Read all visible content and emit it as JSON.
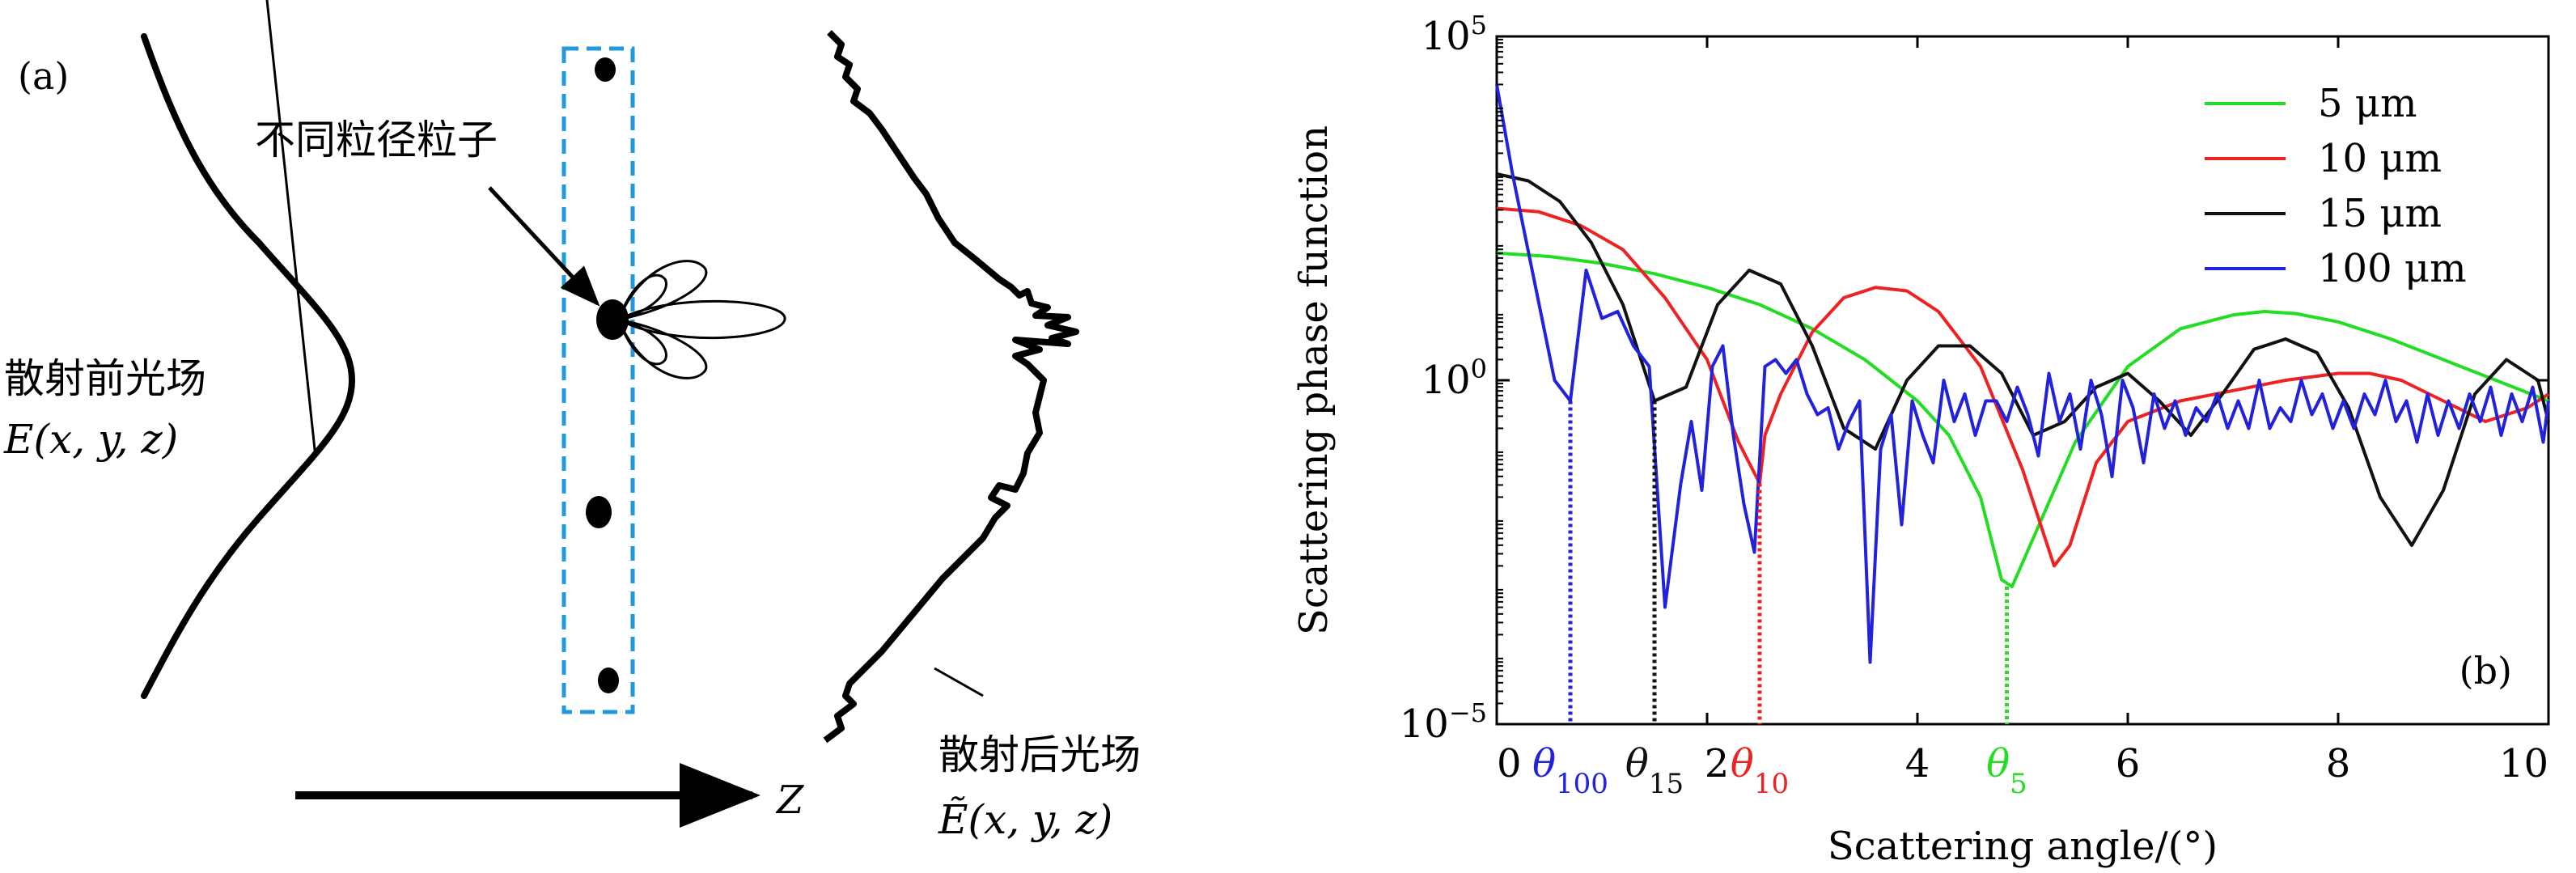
{
  "panel_a": {
    "label": "(a)",
    "particles_label": "不同粒径粒子",
    "before_label": "散射前光场",
    "before_field": "E(x, y, z)",
    "after_label": "散射后光场",
    "after_field": "Ẽ(x, y, z)",
    "axis_z": "Z"
  },
  "chart_data": {
    "type": "line",
    "panel_label": "(b)",
    "xlabel": "Scattering angle/(°)",
    "ylabel": "Scattering phase function",
    "xlim": [
      0,
      10
    ],
    "ylim_log10": [
      -5,
      5
    ],
    "y_scale": "log",
    "xticks": [
      0,
      2,
      4,
      6,
      8,
      10
    ],
    "yticks": [
      {
        "exp": 5,
        "base": "10",
        "sup": "5"
      },
      {
        "exp": 0,
        "base": "10",
        "sup": "0"
      },
      {
        "exp": -5,
        "base": "10",
        "sup": "−5"
      }
    ],
    "grid": false,
    "legend_position": "top-right",
    "series": [
      {
        "name": "5 μm",
        "color": "#22dd22",
        "x": [
          0,
          0.5,
          1,
          1.5,
          2,
          2.5,
          3,
          3.5,
          4,
          4.3,
          4.6,
          4.8,
          4.9,
          5.1,
          5.5,
          6,
          6.5,
          7,
          7.3,
          7.6,
          8,
          8.5,
          9,
          9.5,
          10
        ],
        "y_log10": [
          1.85,
          1.8,
          1.7,
          1.55,
          1.35,
          1.1,
          0.75,
          0.3,
          -0.3,
          -0.8,
          -1.7,
          -2.9,
          -3.0,
          -2.3,
          -0.9,
          0.2,
          0.75,
          0.95,
          1.0,
          0.97,
          0.85,
          0.6,
          0.3,
          0,
          -0.3
        ]
      },
      {
        "name": "10 μm",
        "color": "#ee2222",
        "x": [
          0,
          0.4,
          0.8,
          1.2,
          1.6,
          2,
          2.3,
          2.5,
          2.55,
          2.7,
          3,
          3.3,
          3.6,
          3.9,
          4.2,
          4.6,
          5,
          5.3,
          5.45,
          5.7,
          6,
          6.5,
          7,
          7.5,
          8,
          8.3,
          8.6,
          9,
          9.4,
          9.8,
          10
        ],
        "y_log10": [
          2.5,
          2.45,
          2.25,
          1.9,
          1.2,
          0.3,
          -0.9,
          -1.5,
          -0.8,
          -0.2,
          0.7,
          1.2,
          1.35,
          1.3,
          1.0,
          0.2,
          -1.3,
          -2.7,
          -2.4,
          -1.2,
          -0.6,
          -0.3,
          -0.15,
          0,
          0.1,
          0.1,
          0.0,
          -0.3,
          -0.6,
          -0.4,
          -0.2
        ]
      },
      {
        "name": "15 μm",
        "color": "#111111",
        "x": [
          0,
          0.3,
          0.6,
          0.9,
          1.2,
          1.5,
          1.8,
          2.1,
          2.4,
          2.7,
          3,
          3.3,
          3.6,
          3.9,
          4.2,
          4.5,
          4.8,
          5.1,
          5.4,
          5.7,
          6,
          6.3,
          6.6,
          6.9,
          7.2,
          7.5,
          7.8,
          8.1,
          8.4,
          8.7,
          9,
          9.3,
          9.6,
          9.9,
          10
        ],
        "y_log10": [
          3.0,
          2.9,
          2.6,
          2.0,
          1.1,
          -0.3,
          -0.1,
          1.1,
          1.6,
          1.4,
          0.5,
          -0.7,
          -1.0,
          0.0,
          0.5,
          0.5,
          0.1,
          -0.8,
          -0.6,
          -0.1,
          0.1,
          -0.3,
          -0.8,
          -0.2,
          0.45,
          0.6,
          0.4,
          -0.4,
          -1.7,
          -2.4,
          -1.6,
          -0.2,
          0.3,
          0.0,
          -0.6
        ]
      },
      {
        "name": "100 μm",
        "color": "#2222dd",
        "x": [
          0,
          0.15,
          0.35,
          0.55,
          0.7,
          0.85,
          1.0,
          1.15,
          1.3,
          1.45,
          1.6,
          1.75,
          1.85,
          1.95,
          2.05,
          2.15,
          2.25,
          2.35,
          2.45,
          2.55,
          2.65,
          2.75,
          2.85,
          2.95,
          3.05,
          3.15,
          3.25,
          3.35,
          3.45,
          3.55,
          3.65,
          3.75,
          3.85,
          3.95,
          4.05,
          4.15,
          4.25,
          4.35,
          4.45,
          4.55,
          4.65,
          4.75,
          4.85,
          4.95,
          5.05,
          5.15,
          5.25,
          5.35,
          5.45,
          5.55,
          5.65,
          5.75,
          5.85,
          5.95,
          6.05,
          6.15,
          6.25,
          6.35,
          6.45,
          6.55,
          6.65,
          6.75,
          6.85,
          6.95,
          7.05,
          7.15,
          7.25,
          7.35,
          7.45,
          7.55,
          7.65,
          7.75,
          7.85,
          7.95,
          8.05,
          8.15,
          8.25,
          8.35,
          8.45,
          8.55,
          8.65,
          8.75,
          8.85,
          8.95,
          9.05,
          9.15,
          9.25,
          9.35,
          9.45,
          9.55,
          9.65,
          9.75,
          9.85,
          9.95,
          10
        ],
        "y_log10": [
          4.3,
          3.0,
          1.5,
          0.0,
          -0.3,
          1.6,
          0.9,
          1.0,
          0.5,
          0.2,
          -3.3,
          -1.5,
          -0.6,
          -1.6,
          0.2,
          0.5,
          -0.8,
          -1.8,
          -2.5,
          0.2,
          0.3,
          0.1,
          0.3,
          -0.2,
          -0.5,
          -0.4,
          -1.0,
          -0.6,
          -0.3,
          -4.1,
          -1.0,
          -0.5,
          -2.1,
          -0.3,
          -0.8,
          -1.2,
          0.0,
          -0.6,
          -0.2,
          -0.8,
          -0.3,
          -0.3,
          -0.6,
          -0.1,
          -0.5,
          -1.1,
          0.1,
          -0.6,
          -0.2,
          -1.0,
          0.0,
          -0.5,
          -1.4,
          0.0,
          -0.4,
          -1.2,
          -0.2,
          -0.7,
          -0.3,
          -0.8,
          -0.4,
          -0.6,
          -0.2,
          -0.7,
          -0.3,
          -0.7,
          0.0,
          -0.7,
          -0.4,
          -0.6,
          0.0,
          -0.5,
          -0.2,
          -0.7,
          -0.3,
          -0.7,
          -0.2,
          -0.5,
          0.0,
          -0.6,
          -0.3,
          -0.9,
          -0.2,
          -0.8,
          -0.3,
          -0.7,
          -0.2,
          -0.6,
          -0.1,
          -0.8,
          -0.2,
          -0.6,
          -0.1,
          -0.9,
          -0.3
        ]
      }
    ],
    "annotations": [
      {
        "label_base": "θ",
        "label_sub": "100",
        "x": 0.7,
        "y_log10": -0.3,
        "color": "#2222dd"
      },
      {
        "label_base": "θ",
        "label_sub": "15",
        "x": 1.5,
        "y_log10": -0.3,
        "color": "#111111"
      },
      {
        "label_base": "θ",
        "label_sub": "10",
        "x": 2.5,
        "y_log10": -1.5,
        "color": "#ee2222"
      },
      {
        "label_base": "θ",
        "label_sub": "5",
        "x": 4.85,
        "y_log10": -3.0,
        "color": "#22dd22"
      }
    ]
  }
}
